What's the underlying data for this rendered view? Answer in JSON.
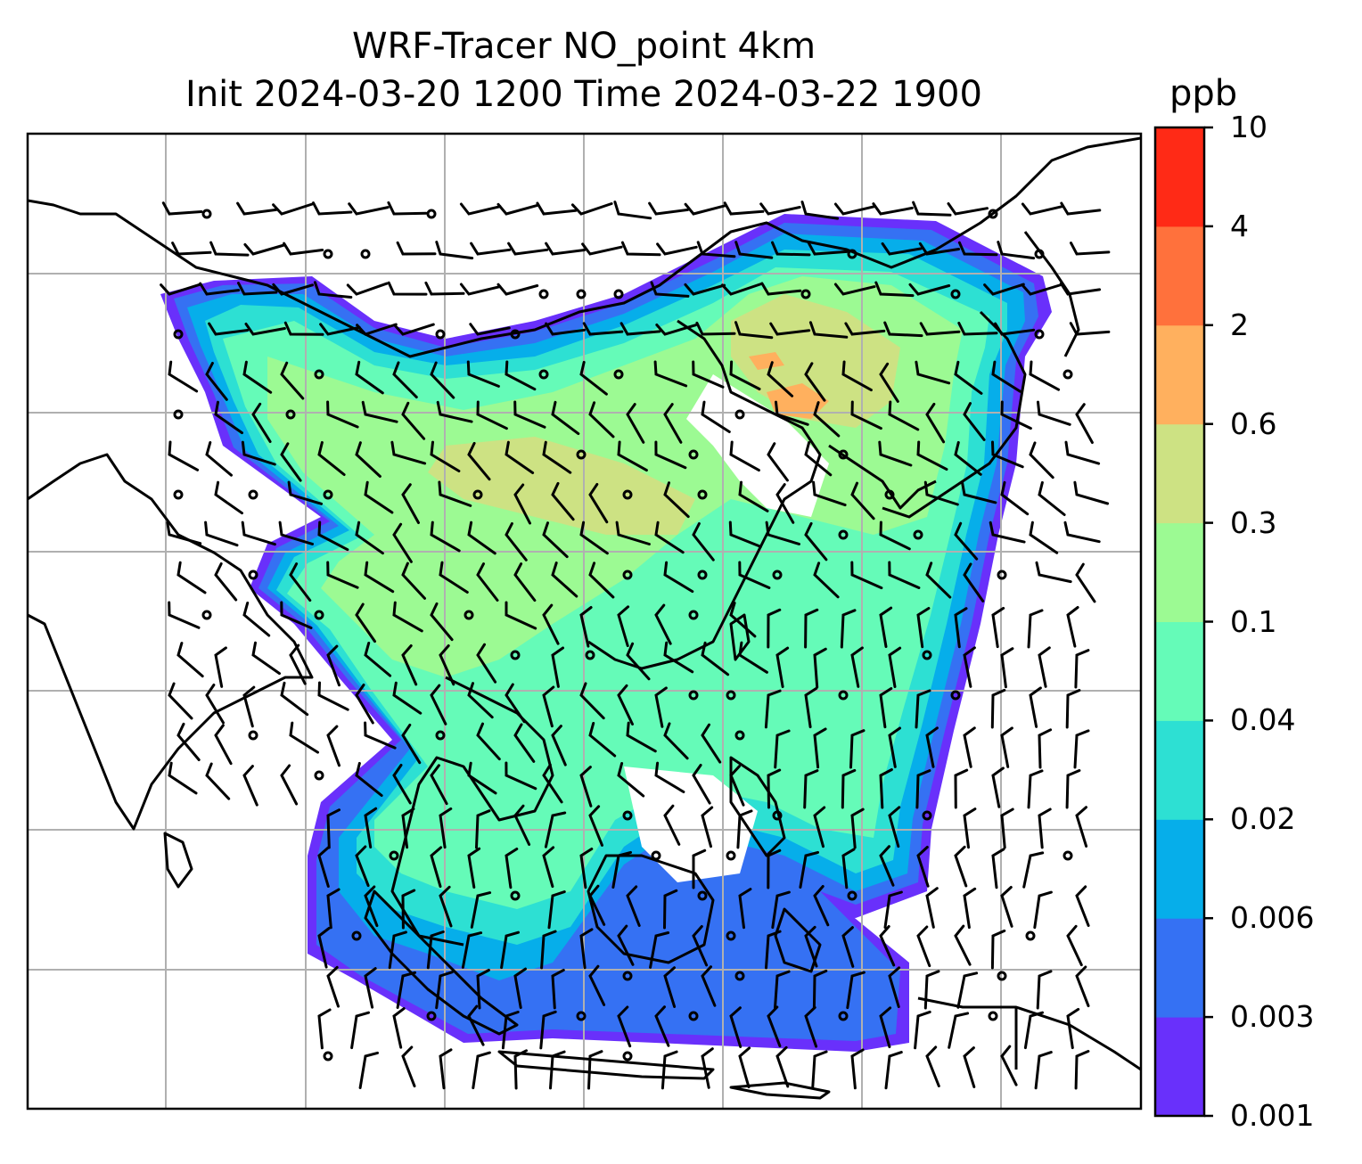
{
  "title": {
    "line1": "WRF-Tracer NO_point 4km",
    "line2": "Init 2024-03-20 1200 Time 2024-03-22 1900"
  },
  "colorbar": {
    "unit": "ppb",
    "levels": [
      "0.001",
      "0.003",
      "0.006",
      "0.02",
      "0.04",
      "0.1",
      "0.3",
      "0.6",
      "2",
      "4",
      "10"
    ],
    "colors": [
      "#6930fb",
      "#3571f3",
      "#06aeea",
      "#2de0d3",
      "#65fbb8",
      "#9cfa93",
      "#cde283",
      "#ffb05e",
      "#ff713c",
      "#ff2a16"
    ]
  },
  "map": {
    "background": "#ffffff",
    "coastline_color": "#000000",
    "gridline_color": "#b0b0b0",
    "barb_color": "#000000"
  }
}
